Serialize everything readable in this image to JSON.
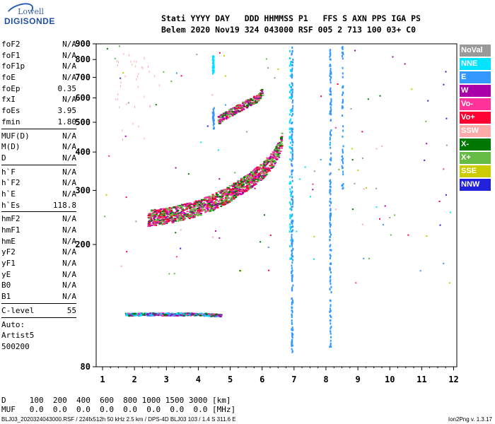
{
  "logo": {
    "line1": "Lowell",
    "line2": "DIGISONDE"
  },
  "header": {
    "row1": "Stati YYYY DAY   DDD HHMMSS P1   FFS S AXN PPS IGA PS",
    "row2": "Belem 2020 Nov19 324 043000 RSF 005 2 713 100 03+ C0"
  },
  "params": {
    "group1": [
      {
        "name": "foF2",
        "value": "N/A"
      },
      {
        "name": "foF1",
        "value": "N/A"
      },
      {
        "name": "foF1p",
        "value": "N/A"
      },
      {
        "name": "foE",
        "value": "N/A"
      },
      {
        "name": "foEp",
        "value": "0.35"
      },
      {
        "name": "fxI",
        "value": "N/A"
      },
      {
        "name": "foEs",
        "value": "3.95"
      },
      {
        "name": "fmin",
        "value": "1.80"
      }
    ],
    "group2": [
      {
        "name": "MUF(D)",
        "value": "N/A"
      },
      {
        "name": "M(D)",
        "value": "N/A"
      },
      {
        "name": "D",
        "value": "N/A"
      }
    ],
    "group3": [
      {
        "name": "h`F",
        "value": "N/A"
      },
      {
        "name": "h`F2",
        "value": "N/A"
      },
      {
        "name": "h`E",
        "value": "N/A"
      },
      {
        "name": "h`Es",
        "value": "118.8"
      }
    ],
    "group4": [
      {
        "name": "hmF2",
        "value": "N/A"
      },
      {
        "name": "hmF1",
        "value": "N/A"
      },
      {
        "name": "hmE",
        "value": "N/A"
      },
      {
        "name": "yF2",
        "value": "N/A"
      },
      {
        "name": "yF1",
        "value": "N/A"
      },
      {
        "name": "yE",
        "value": "N/A"
      },
      {
        "name": "B0",
        "value": "N/A"
      },
      {
        "name": "B1",
        "value": "N/A"
      }
    ],
    "group5": [
      {
        "name": "C-level",
        "value": "55"
      }
    ],
    "auto": [
      "Auto:",
      "Artist5",
      "500200"
    ]
  },
  "legend": [
    {
      "label": "NoVal",
      "color": "#999999"
    },
    {
      "label": "NNE",
      "color": "#00e5ff"
    },
    {
      "label": "E",
      "color": "#3399ff"
    },
    {
      "label": "W",
      "color": "#aa00aa"
    },
    {
      "label": "Vo-",
      "color": "#ff3399"
    },
    {
      "label": "Vo+",
      "color": "#ff0033"
    },
    {
      "label": "SSW",
      "color": "#ffaaaa"
    },
    {
      "label": "X-",
      "color": "#007700"
    },
    {
      "label": "X+",
      "color": "#66bb44"
    },
    {
      "label": "SSE",
      "color": "#cccc00"
    },
    {
      "label": "NNW",
      "color": "#2222dd"
    }
  ],
  "chart_data": {
    "type": "scatter",
    "xlabel": "",
    "ylabel": "",
    "xlim": [
      0.8,
      12.1
    ],
    "ylim": [
      80,
      900
    ],
    "x_ticks": [
      1,
      2,
      3,
      4,
      5,
      6,
      7,
      8,
      9,
      10,
      11,
      12
    ],
    "y_ticks": [
      80,
      200,
      300,
      400,
      500,
      600,
      700,
      800,
      900
    ],
    "y_scale": "log",
    "grid": false,
    "traces": [
      {
        "name": "F-layer trace",
        "points": [
          [
            2.4,
            245
          ],
          [
            2.8,
            248
          ],
          [
            3.2,
            252
          ],
          [
            3.6,
            258
          ],
          [
            4.0,
            265
          ],
          [
            4.4,
            275
          ],
          [
            4.8,
            288
          ],
          [
            5.2,
            305
          ],
          [
            5.6,
            325
          ],
          [
            6.0,
            350
          ],
          [
            6.3,
            380
          ],
          [
            6.5,
            410
          ],
          [
            6.6,
            440
          ]
        ]
      },
      {
        "name": "F-layer upper trace",
        "points": [
          [
            4.6,
            510
          ],
          [
            5.0,
            540
          ],
          [
            5.4,
            570
          ],
          [
            5.8,
            600
          ],
          [
            6.0,
            630
          ]
        ]
      },
      {
        "name": "Es trace",
        "points": [
          [
            1.7,
            118.8
          ],
          [
            2.5,
            119
          ],
          [
            3.3,
            119
          ],
          [
            4.0,
            119
          ],
          [
            4.7,
            118
          ]
        ]
      }
    ]
  },
  "footer": {
    "d_row": "D     100  200  400  600  800 1000 1500 3000 [km]",
    "muf_row": "MUF   0.0  0.0  0.0  0.0  0.0  0.0  0.0  0.0 [MHz]",
    "file_info": "BLJ03_2020324043000.RSF / 224fx512h 50 kHz 2.5 km / DPS-4D BLJ03 103 / 1.4 S 311.6 E",
    "version": "Ion2Png v. 1.3.17"
  }
}
